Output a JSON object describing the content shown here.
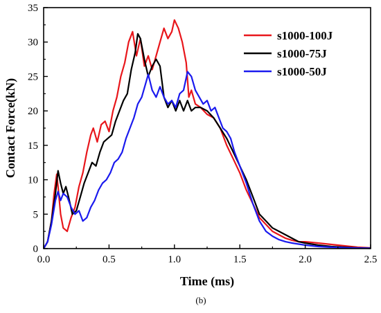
{
  "caption": "(b)",
  "chart_data": {
    "type": "line",
    "title": "",
    "xlabel": "Time (ms)",
    "ylabel": "Contact Force(kN)",
    "xlim": [
      0.0,
      2.5
    ],
    "ylim": [
      0,
      35
    ],
    "xticks": [
      0.0,
      0.5,
      1.0,
      1.5,
      2.0,
      2.5
    ],
    "xtick_labels": [
      "0.0",
      "0.5",
      "1.0",
      "1.5",
      "2.0",
      "2.5"
    ],
    "yticks": [
      0,
      5,
      10,
      15,
      20,
      25,
      30,
      35
    ],
    "ytick_labels": [
      "0",
      "5",
      "10",
      "15",
      "20",
      "25",
      "30",
      "35"
    ],
    "grid": false,
    "legend_position": "top-right",
    "series": [
      {
        "name": "s1000-100J",
        "color": "#e8161b",
        "points": [
          [
            0.0,
            0
          ],
          [
            0.03,
            1
          ],
          [
            0.06,
            4
          ],
          [
            0.08,
            8
          ],
          [
            0.1,
            10.8
          ],
          [
            0.11,
            9
          ],
          [
            0.13,
            5
          ],
          [
            0.15,
            3
          ],
          [
            0.18,
            2.5
          ],
          [
            0.21,
            4.5
          ],
          [
            0.24,
            6
          ],
          [
            0.27,
            9
          ],
          [
            0.3,
            11
          ],
          [
            0.33,
            14
          ],
          [
            0.36,
            16.5
          ],
          [
            0.38,
            17.5
          ],
          [
            0.41,
            15.5
          ],
          [
            0.44,
            18
          ],
          [
            0.47,
            18.5
          ],
          [
            0.5,
            17
          ],
          [
            0.53,
            20
          ],
          [
            0.56,
            22
          ],
          [
            0.59,
            25
          ],
          [
            0.62,
            27
          ],
          [
            0.65,
            30
          ],
          [
            0.68,
            31.5
          ],
          [
            0.71,
            28
          ],
          [
            0.74,
            30.5
          ],
          [
            0.77,
            26.5
          ],
          [
            0.8,
            28
          ],
          [
            0.83,
            26
          ],
          [
            0.86,
            28
          ],
          [
            0.89,
            30
          ],
          [
            0.92,
            32
          ],
          [
            0.95,
            30.5
          ],
          [
            0.98,
            31.5
          ],
          [
            1.0,
            33.2
          ],
          [
            1.03,
            32
          ],
          [
            1.06,
            30
          ],
          [
            1.09,
            27
          ],
          [
            1.11,
            22
          ],
          [
            1.13,
            23
          ],
          [
            1.16,
            21
          ],
          [
            1.2,
            20.5
          ],
          [
            1.25,
            19.5
          ],
          [
            1.3,
            19
          ],
          [
            1.35,
            17.5
          ],
          [
            1.4,
            15
          ],
          [
            1.45,
            13
          ],
          [
            1.5,
            11
          ],
          [
            1.55,
            8.5
          ],
          [
            1.6,
            6.5
          ],
          [
            1.65,
            4.5
          ],
          [
            1.7,
            3.5
          ],
          [
            1.75,
            2.5
          ],
          [
            1.8,
            2
          ],
          [
            1.85,
            1.5
          ],
          [
            1.9,
            1.2
          ],
          [
            1.95,
            1
          ],
          [
            2.0,
            1
          ],
          [
            2.1,
            0.8
          ],
          [
            2.2,
            0.6
          ],
          [
            2.3,
            0.4
          ],
          [
            2.4,
            0.2
          ],
          [
            2.5,
            0.1
          ]
        ]
      },
      {
        "name": "s1000-75J",
        "color": "#000000",
        "points": [
          [
            0.0,
            0
          ],
          [
            0.03,
            1
          ],
          [
            0.06,
            4
          ],
          [
            0.09,
            8
          ],
          [
            0.11,
            11.3
          ],
          [
            0.13,
            9.5
          ],
          [
            0.15,
            8
          ],
          [
            0.17,
            9
          ],
          [
            0.19,
            7.5
          ],
          [
            0.22,
            5
          ],
          [
            0.25,
            5.5
          ],
          [
            0.28,
            7.5
          ],
          [
            0.31,
            9.5
          ],
          [
            0.34,
            11
          ],
          [
            0.37,
            12.5
          ],
          [
            0.4,
            12
          ],
          [
            0.43,
            14
          ],
          [
            0.46,
            15.5
          ],
          [
            0.49,
            16
          ],
          [
            0.52,
            16.5
          ],
          [
            0.55,
            18.5
          ],
          [
            0.58,
            20
          ],
          [
            0.61,
            21.5
          ],
          [
            0.64,
            22.5
          ],
          [
            0.67,
            26
          ],
          [
            0.7,
            28.5
          ],
          [
            0.72,
            31.2
          ],
          [
            0.74,
            30.5
          ],
          [
            0.77,
            27.5
          ],
          [
            0.8,
            25
          ],
          [
            0.83,
            26.5
          ],
          [
            0.86,
            27.5
          ],
          [
            0.89,
            26.5
          ],
          [
            0.92,
            22
          ],
          [
            0.95,
            20.5
          ],
          [
            0.98,
            21.5
          ],
          [
            1.01,
            20
          ],
          [
            1.04,
            21.5
          ],
          [
            1.07,
            20
          ],
          [
            1.1,
            21.5
          ],
          [
            1.13,
            20
          ],
          [
            1.16,
            20.5
          ],
          [
            1.2,
            20.5
          ],
          [
            1.25,
            20
          ],
          [
            1.3,
            19
          ],
          [
            1.35,
            17.5
          ],
          [
            1.4,
            16
          ],
          [
            1.45,
            14
          ],
          [
            1.5,
            12
          ],
          [
            1.55,
            10
          ],
          [
            1.6,
            7.5
          ],
          [
            1.65,
            5
          ],
          [
            1.7,
            4
          ],
          [
            1.75,
            3
          ],
          [
            1.8,
            2.5
          ],
          [
            1.85,
            2
          ],
          [
            1.9,
            1.5
          ],
          [
            1.95,
            1
          ],
          [
            2.0,
            0.8
          ],
          [
            2.1,
            0.5
          ],
          [
            2.2,
            0.3
          ],
          [
            2.3,
            0.2
          ],
          [
            2.4,
            0.1
          ],
          [
            2.5,
            0.05
          ]
        ]
      },
      {
        "name": "s1000-50J",
        "color": "#1a1aee",
        "points": [
          [
            0.0,
            0
          ],
          [
            0.03,
            1
          ],
          [
            0.06,
            3.5
          ],
          [
            0.09,
            7
          ],
          [
            0.11,
            8.3
          ],
          [
            0.13,
            7
          ],
          [
            0.15,
            8
          ],
          [
            0.18,
            7.5
          ],
          [
            0.21,
            6
          ],
          [
            0.24,
            5
          ],
          [
            0.27,
            5.5
          ],
          [
            0.3,
            4
          ],
          [
            0.33,
            4.5
          ],
          [
            0.36,
            6
          ],
          [
            0.39,
            7
          ],
          [
            0.42,
            8.5
          ],
          [
            0.45,
            9.5
          ],
          [
            0.48,
            10
          ],
          [
            0.51,
            11
          ],
          [
            0.54,
            12.5
          ],
          [
            0.57,
            13
          ],
          [
            0.6,
            14
          ],
          [
            0.63,
            16
          ],
          [
            0.66,
            17.5
          ],
          [
            0.69,
            19
          ],
          [
            0.72,
            21
          ],
          [
            0.75,
            22
          ],
          [
            0.78,
            24
          ],
          [
            0.8,
            25.3
          ],
          [
            0.83,
            23
          ],
          [
            0.86,
            22
          ],
          [
            0.89,
            23.5
          ],
          [
            0.92,
            22
          ],
          [
            0.95,
            21
          ],
          [
            0.98,
            21.5
          ],
          [
            1.01,
            20.5
          ],
          [
            1.04,
            22.5
          ],
          [
            1.07,
            23
          ],
          [
            1.1,
            25.7
          ],
          [
            1.13,
            25
          ],
          [
            1.16,
            23
          ],
          [
            1.19,
            22
          ],
          [
            1.22,
            21
          ],
          [
            1.25,
            21.5
          ],
          [
            1.28,
            20
          ],
          [
            1.31,
            20.5
          ],
          [
            1.34,
            19
          ],
          [
            1.37,
            17.5
          ],
          [
            1.4,
            17
          ],
          [
            1.43,
            16
          ],
          [
            1.46,
            14
          ],
          [
            1.5,
            12
          ],
          [
            1.55,
            9.5
          ],
          [
            1.6,
            6.5
          ],
          [
            1.65,
            4
          ],
          [
            1.7,
            2.5
          ],
          [
            1.75,
            1.8
          ],
          [
            1.8,
            1.3
          ],
          [
            1.85,
            1
          ],
          [
            1.9,
            0.8
          ],
          [
            2.0,
            0.5
          ],
          [
            2.1,
            0.3
          ],
          [
            2.2,
            0.2
          ],
          [
            2.35,
            0.1
          ],
          [
            2.5,
            0.05
          ]
        ]
      }
    ]
  }
}
